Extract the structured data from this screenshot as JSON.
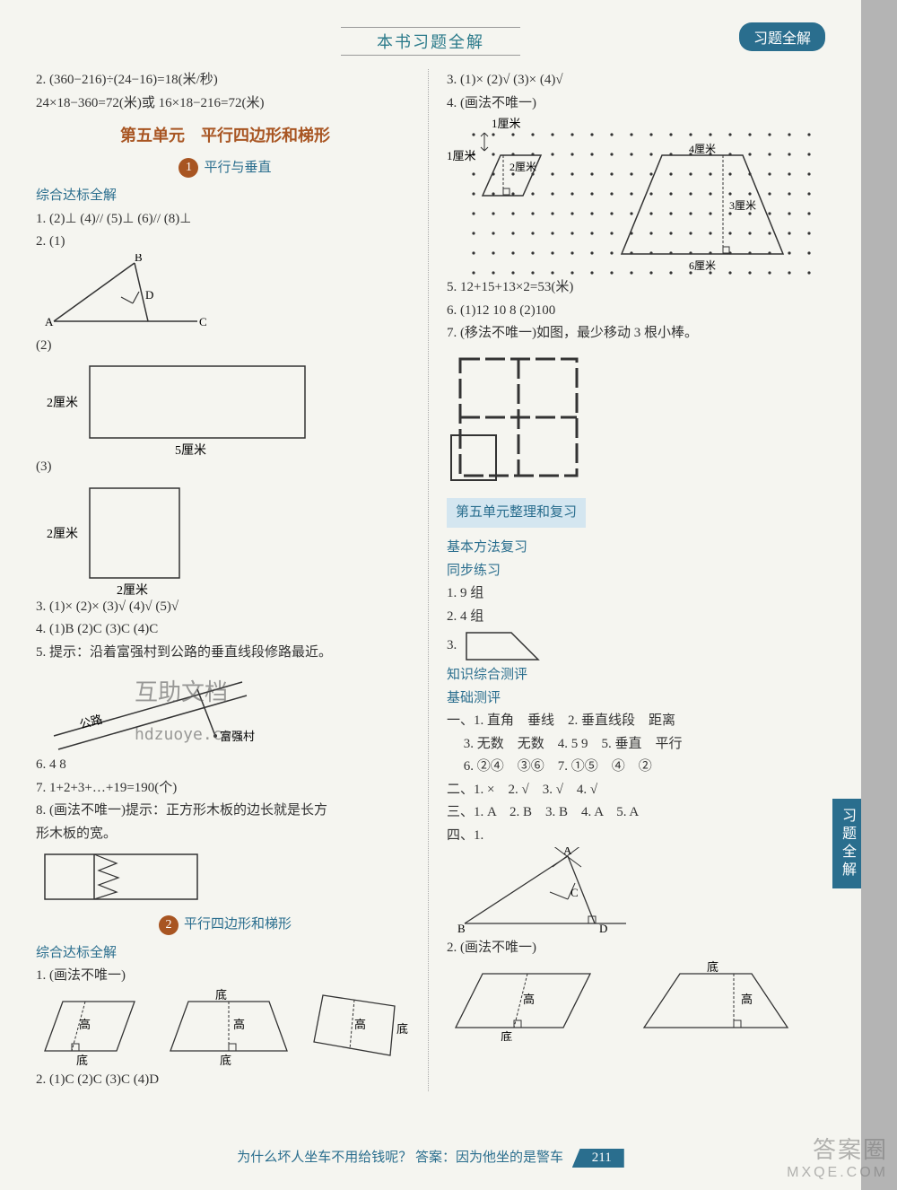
{
  "header": {
    "title": "本书习题全解",
    "badge": "习题全解"
  },
  "sideTab": "习题全解",
  "footer": {
    "riddle": "为什么坏人坐车不用给钱呢？ 答案：因为他坐的是警车",
    "pageNum": "211"
  },
  "watermark": {
    "url": "hdzuoye.com",
    "center": "互助文档",
    "br1": "答案圈",
    "br2": "MXQE.COM"
  },
  "left": {
    "q2a": "2. (360−216)÷(24−16)=18(米/秒)",
    "q2b": "   24×18−360=72(米)或 16×18−216=72(米)",
    "unitTitle": "第五单元　平行四边形和梯形",
    "sec1Num": "1",
    "sec1Title": "平行与垂直",
    "sub1": "综合达标全解",
    "s1q1": "1. (2)⊥  (4)//  (5)⊥  (6)//  (8)⊥",
    "s1q2": "2. (1)",
    "tri": {
      "A": "A",
      "B": "B",
      "C": "C",
      "D": "D"
    },
    "s1q2_2": "(2)",
    "rect5x2": {
      "w": "5厘米",
      "h": "2厘米"
    },
    "s1q2_3": "(3)",
    "sq2": {
      "w": "2厘米",
      "h": "2厘米"
    },
    "s1q3": "3. (1)×  (2)×  (3)√  (4)√  (5)√",
    "s1q4": "4. (1)B  (2)C  (3)C  (4)C",
    "s1q5": "5. 提示：沿着富强村到公路的垂直线段修路最近。",
    "village": "富强村",
    "road": "公路",
    "s1q6": "6. 4  8",
    "s1q7": "7. 1+2+3+…+19=190(个)",
    "s1q8a": "8. (画法不唯一)提示：正方形木板的边长就是长方",
    "s1q8b": "   形木板的宽。",
    "sec2Num": "2",
    "sec2Title": "平行四边形和梯形",
    "sub2": "综合达标全解",
    "s2q1": "1. (画法不唯一)",
    "shapeLabels": {
      "di": "底",
      "gao": "高"
    },
    "s2q2": "2. (1)C  (2)C  (3)C  (4)D"
  },
  "right": {
    "q3": "3. (1)×  (2)√  (3)×  (4)√",
    "q4": "4. (画法不唯一)",
    "dot": {
      "cm1": "1厘米",
      "cm2": "2厘米",
      "cm3": "3厘米",
      "cm4": "4厘米",
      "cm6": "6厘米"
    },
    "q5": "5. 12+15+13×2=53(米)",
    "q6": "6. (1)12  10  8  (2)100",
    "q7": "7. (移法不唯一)如图，最少移动 3 根小棒。",
    "reviewTitle": "第五单元整理和复习",
    "basicMethod": "基本方法复习",
    "syncPractice": "同步练习",
    "sp1": "1. 9 组",
    "sp2": "2. 4 组",
    "sp3": "3.",
    "knowledge": "知识综合测评",
    "basicTest": "基础测评",
    "bt1": "一、1. 直角　垂线　2. 垂直线段　距离",
    "bt1b": "　 3. 无数　无数　4. 5  9　5. 垂直　平行",
    "bt1c": "　 6. ②④　③⑥　7. ①⑤　④　②",
    "bt2": "二、1. ×　2. √　3. √　4. √",
    "bt3": "三、1. A　2. B　3. B　4. A　5. A",
    "bt4": "四、1.",
    "triLabels": {
      "A": "A",
      "B": "B",
      "C": "C",
      "D": "D"
    },
    "bt4_2": "2. (画法不唯一)",
    "shapeLabels": {
      "di": "底",
      "gao": "高"
    }
  },
  "colors": {
    "teal": "#2a6e8e",
    "brown": "#a85522",
    "text": "#333333",
    "bgPage": "#f5f5f0",
    "bgOuter": "#b4b4b4"
  }
}
